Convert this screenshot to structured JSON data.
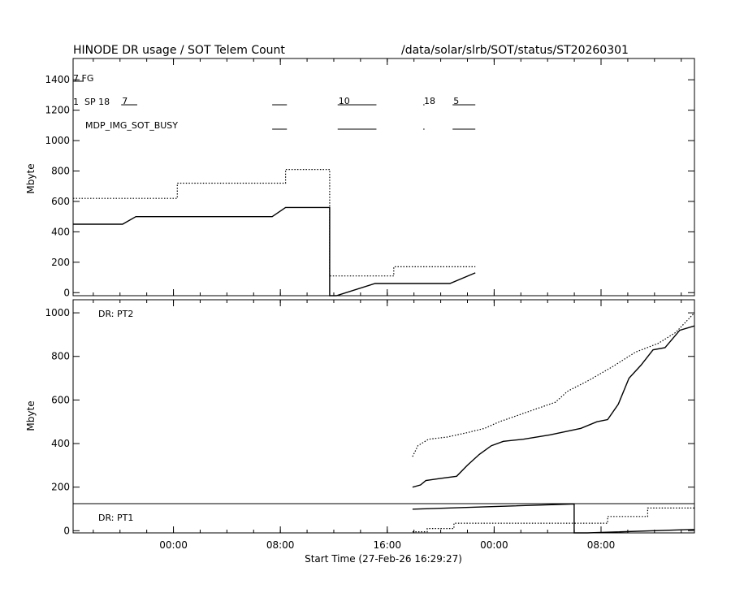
{
  "header": {
    "title": "HINODE DR usage / SOT Telem Count",
    "path": "/data/solar/slrb/SOT/status/ST20260301"
  },
  "xaxis": {
    "label": "Start Time (27-Feb-26 16:29:27)",
    "tick_labels": [
      "00:00",
      "08:00",
      "16:00",
      "00:00",
      "08:00"
    ],
    "tick_hours": [
      7.51,
      15.51,
      23.51,
      31.51,
      39.51
    ],
    "range_hours": [
      0,
      46.5
    ]
  },
  "top_panel": {
    "ylabel": "Mbyte",
    "yticks": [
      0,
      200,
      400,
      600,
      800,
      1000,
      1200,
      1400
    ],
    "ylim": [
      -20,
      1540
    ],
    "labels": {
      "fg": "7 FG",
      "sp_prefix": "1",
      "sp": "SP 18",
      "busy": "MDP_IMG_SOT_BUSY"
    },
    "counts": [
      {
        "text": "7",
        "hour": 3.6
      },
      {
        "text": "10",
        "hour": 19.8
      },
      {
        "text": "18",
        "hour": 26.2
      },
      {
        "text": "5",
        "hour": 28.4
      }
    ]
  },
  "bottom_panel": {
    "yticks": [
      0,
      200,
      400,
      600,
      800,
      1000
    ],
    "ylabel": "Mbyte",
    "ylim": [
      -10,
      1060
    ],
    "label_pt2": "DR: PT2",
    "label_pt1": "DR: PT1",
    "pt1_ylim": [
      0,
      1000
    ]
  },
  "chart_data": [
    {
      "type": "line",
      "title": "HINODE DR usage / SOT Telem Count",
      "xlabel": "Start Time (27-Feb-26 16:29:27)",
      "ylabel": "Mbyte",
      "x_units": "hours since 27-Feb-26 16:29:27",
      "series": [
        {
          "style": "dotted",
          "step": true,
          "x": [
            0,
            7.8,
            7.8,
            15.9,
            15.9,
            19.2,
            19.2,
            21.8,
            21.8,
            24.0,
            24.0,
            30.1
          ],
          "y": [
            620,
            620,
            720,
            720,
            810,
            810,
            110,
            110,
            110,
            110,
            170,
            170
          ]
        },
        {
          "style": "solid",
          "x": [
            0,
            3.7,
            4.7,
            14.9,
            15.9,
            19.2,
            19.2,
            19.7,
            22.6,
            28.2,
            30.1
          ],
          "y": [
            450,
            450,
            500,
            500,
            560,
            560,
            -25,
            -20,
            60,
            60,
            130
          ]
        }
      ]
    },
    {
      "type": "line",
      "title": "DR: PT2",
      "ylabel": "Mbyte",
      "x_units": "hours since 27-Feb-26 16:29:27",
      "series": [
        {
          "style": "dotted",
          "x": [
            25.4,
            25.8,
            26.6,
            28.0,
            29.5,
            30.8,
            31.9,
            33.3,
            34.7,
            36.1,
            37.0,
            38.6,
            40.3,
            42.1,
            43.8,
            45.1,
            46.5
          ],
          "y": [
            340,
            390,
            420,
            430,
            450,
            470,
            500,
            530,
            560,
            590,
            640,
            690,
            750,
            820,
            860,
            910,
            1000
          ]
        },
        {
          "style": "solid",
          "x": [
            25.4,
            26.0,
            26.4,
            27.5,
            28.7,
            29.5,
            30.4,
            31.3,
            32.2,
            33.7,
            35.7,
            38.0,
            39.2,
            40.0,
            40.8,
            41.6,
            42.5,
            43.4,
            44.3,
            45.4,
            46.5
          ],
          "y": [
            200,
            210,
            230,
            240,
            250,
            300,
            350,
            390,
            410,
            420,
            440,
            470,
            500,
            510,
            580,
            700,
            760,
            830,
            840,
            920,
            940
          ]
        }
      ]
    },
    {
      "type": "line",
      "title": "DR: PT1",
      "x_units": "hours since 27-Feb-26 16:29:27",
      "series": [
        {
          "style": "solid",
          "x": [
            25.4,
            37.5,
            37.5,
            38.5,
            46.5
          ],
          "y": [
            810,
            990,
            0,
            0,
            120
          ]
        },
        {
          "style": "dotted",
          "x": [
            25.4,
            26.5,
            26.5,
            28.5,
            28.5,
            40.0,
            40.0,
            43.0,
            43.0,
            46.5
          ],
          "y": [
            40,
            40,
            150,
            150,
            330,
            330,
            560,
            560,
            850,
            850
          ]
        }
      ]
    }
  ]
}
